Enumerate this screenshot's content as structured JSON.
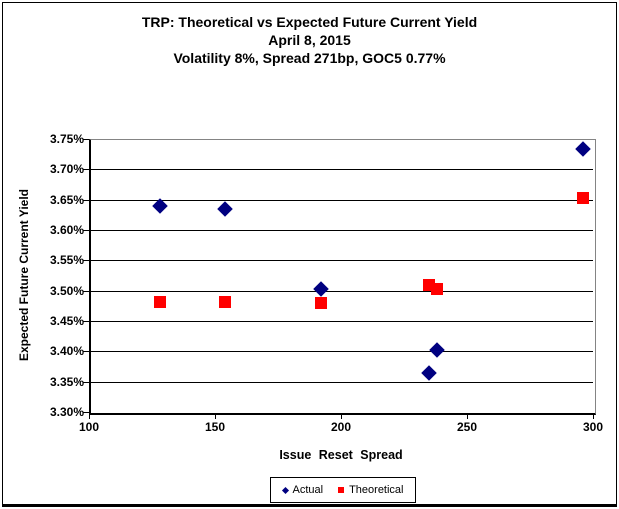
{
  "chart_data": {
    "type": "scatter",
    "title": "TRP: Theoretical vs Expected Future Current Yield",
    "subtitle": "April 8, 2015",
    "subtitle2": "Volatility 8%, Spread 271bp, GOC5 0.77%",
    "xlabel": "Issue Reset Spread",
    "ylabel": "Expected Future Current Yield",
    "xlim": [
      100,
      300
    ],
    "ylim": [
      3.3,
      3.75
    ],
    "x_ticks": [
      100,
      150,
      200,
      250,
      300
    ],
    "y_ticks": [
      3.3,
      3.35,
      3.4,
      3.45,
      3.5,
      3.55,
      3.6,
      3.65,
      3.7,
      3.75
    ],
    "y_tick_suffix": "%",
    "grid": "horizontal-only",
    "legend_position": "bottom-center",
    "series": [
      {
        "name": "Actual",
        "marker": "diamond",
        "color": "#000080",
        "points": [
          [
            128,
            3.639
          ],
          [
            154,
            3.634
          ],
          [
            192,
            3.503
          ],
          [
            238,
            3.403
          ],
          [
            235,
            3.364
          ],
          [
            296,
            3.733
          ]
        ]
      },
      {
        "name": "Theoretical",
        "marker": "square",
        "color": "#FF0000",
        "points": [
          [
            128,
            3.481
          ],
          [
            154,
            3.481
          ],
          [
            192,
            3.479
          ],
          [
            235,
            3.509
          ],
          [
            238,
            3.502
          ],
          [
            296,
            3.652
          ]
        ]
      }
    ],
    "colors": {
      "gridline": "#000000",
      "axis": "#000000",
      "plot_border": "#848484",
      "text": "#000000"
    }
  }
}
